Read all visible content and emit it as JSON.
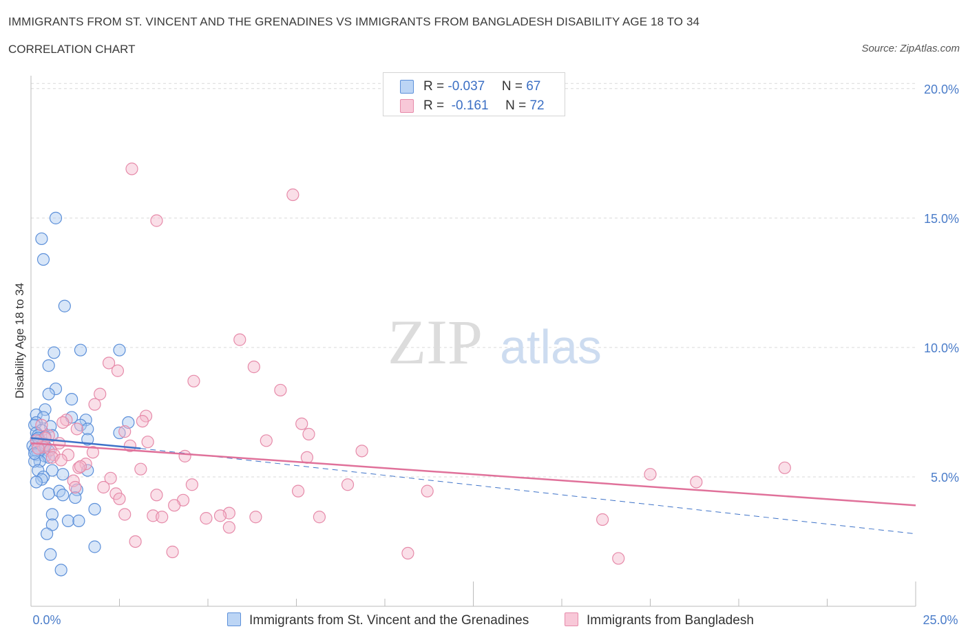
{
  "title": "IMMIGRANTS FROM ST. VINCENT AND THE GRENADINES VS IMMIGRANTS FROM BANGLADESH DISABILITY AGE 18 TO 34",
  "subtitle": "CORRELATION CHART",
  "source": "Source: ZipAtlas.com",
  "watermark": {
    "zip": "ZIP",
    "atlas": "atlas"
  },
  "legend": {
    "rows": [
      {
        "r_label": "R = ",
        "r_value": "-0.037",
        "n_label": "N = ",
        "n_value": "67"
      },
      {
        "r_label": "R = ",
        "r_value": " -0.161",
        "n_label": "N = ",
        "n_value": "72"
      }
    ]
  },
  "colors": {
    "blue_fill": "#a9c8f0",
    "blue_stroke": "#5b8fd9",
    "blue_line": "#3d72c8",
    "pink_fill": "#f5b8cc",
    "pink_stroke": "#e68aa9",
    "pink_line": "#e0719a",
    "grid": "#d9d9d9",
    "axis_text": "#4a7cc9"
  },
  "chart_data": {
    "type": "scatter",
    "title": "IMMIGRANTS FROM ST. VINCENT AND THE GRENADINES VS IMMIGRANTS FROM BANGLADESH DISABILITY AGE 18 TO 34",
    "xlabel": "",
    "ylabel": "Disability Age 18 to 34",
    "xlim": [
      0,
      25
    ],
    "ylim": [
      0,
      20.5
    ],
    "x_tick_labels": [
      {
        "value": 0,
        "label": "0.0%"
      },
      {
        "value": 25,
        "label": "25.0%"
      }
    ],
    "y_tick_labels": [
      {
        "value": 5,
        "label": "5.0%"
      },
      {
        "value": 10,
        "label": "10.0%"
      },
      {
        "value": 15,
        "label": "15.0%"
      },
      {
        "value": 20,
        "label": "20.0%"
      }
    ],
    "series": [
      {
        "name": "Immigrants from St. Vincent and the Grenadines",
        "color": "#a9c8f0",
        "trend": {
          "x0": 0,
          "y0": 6.5,
          "x1": 3.1,
          "y1": 6.1,
          "dashed_x1": 25,
          "dashed_y1": 2.8
        },
        "points": [
          [
            0.7,
            15.0
          ],
          [
            0.3,
            14.2
          ],
          [
            0.35,
            13.4
          ],
          [
            0.95,
            11.6
          ],
          [
            1.4,
            9.9
          ],
          [
            2.5,
            9.9
          ],
          [
            0.65,
            9.8
          ],
          [
            0.5,
            9.3
          ],
          [
            0.7,
            8.4
          ],
          [
            0.5,
            8.2
          ],
          [
            1.15,
            8.0
          ],
          [
            0.4,
            7.6
          ],
          [
            0.15,
            7.4
          ],
          [
            0.35,
            7.3
          ],
          [
            1.15,
            7.3
          ],
          [
            1.55,
            7.2
          ],
          [
            2.75,
            7.1
          ],
          [
            0.15,
            7.1
          ],
          [
            0.1,
            7.0
          ],
          [
            0.55,
            6.95
          ],
          [
            1.4,
            7.0
          ],
          [
            0.3,
            6.8
          ],
          [
            1.6,
            6.85
          ],
          [
            2.5,
            6.7
          ],
          [
            0.15,
            6.7
          ],
          [
            0.2,
            6.6
          ],
          [
            0.6,
            6.6
          ],
          [
            0.4,
            6.55
          ],
          [
            0.15,
            6.45
          ],
          [
            0.25,
            6.4
          ],
          [
            1.6,
            6.45
          ],
          [
            0.15,
            6.3
          ],
          [
            0.35,
            6.3
          ],
          [
            0.05,
            6.2
          ],
          [
            0.3,
            6.1
          ],
          [
            0.1,
            6.05
          ],
          [
            0.5,
            6.0
          ],
          [
            0.2,
            5.95
          ],
          [
            0.15,
            5.85
          ],
          [
            0.4,
            5.8
          ],
          [
            0.5,
            5.75
          ],
          [
            0.25,
            5.6
          ],
          [
            0.1,
            5.6
          ],
          [
            0.2,
            5.25
          ],
          [
            0.6,
            5.25
          ],
          [
            1.6,
            5.25
          ],
          [
            0.9,
            5.1
          ],
          [
            0.35,
            5.0
          ],
          [
            0.3,
            4.9
          ],
          [
            0.15,
            4.8
          ],
          [
            1.3,
            4.5
          ],
          [
            0.8,
            4.45
          ],
          [
            0.5,
            4.35
          ],
          [
            0.9,
            4.3
          ],
          [
            1.25,
            4.2
          ],
          [
            1.8,
            3.75
          ],
          [
            0.6,
            3.55
          ],
          [
            1.05,
            3.3
          ],
          [
            1.35,
            3.3
          ],
          [
            0.6,
            3.15
          ],
          [
            0.45,
            2.8
          ],
          [
            1.8,
            2.3
          ],
          [
            0.55,
            2.0
          ],
          [
            0.85,
            1.4
          ],
          [
            0.2,
            6.5
          ],
          [
            0.4,
            6.2
          ],
          [
            0.1,
            5.9
          ]
        ]
      },
      {
        "name": "Immigrants from Bangladesh",
        "color": "#f5b8cc",
        "trend": {
          "x0": 0,
          "y0": 6.3,
          "x1": 25,
          "y1": 3.9
        },
        "points": [
          [
            2.85,
            16.9
          ],
          [
            7.4,
            15.9
          ],
          [
            3.55,
            14.9
          ],
          [
            5.9,
            10.3
          ],
          [
            2.2,
            9.4
          ],
          [
            6.3,
            9.25
          ],
          [
            2.45,
            9.1
          ],
          [
            4.6,
            8.7
          ],
          [
            7.05,
            8.35
          ],
          [
            1.95,
            8.2
          ],
          [
            1.8,
            7.8
          ],
          [
            3.25,
            7.35
          ],
          [
            1.0,
            7.2
          ],
          [
            0.9,
            7.1
          ],
          [
            3.15,
            7.15
          ],
          [
            7.65,
            7.05
          ],
          [
            1.3,
            6.85
          ],
          [
            2.65,
            6.75
          ],
          [
            7.85,
            6.65
          ],
          [
            0.5,
            6.6
          ],
          [
            6.65,
            6.4
          ],
          [
            0.8,
            6.3
          ],
          [
            3.3,
            6.35
          ],
          [
            0.4,
            6.5
          ],
          [
            2.8,
            6.2
          ],
          [
            0.35,
            6.15
          ],
          [
            0.55,
            6.05
          ],
          [
            1.75,
            5.95
          ],
          [
            9.35,
            6.0
          ],
          [
            1.05,
            5.85
          ],
          [
            0.65,
            5.85
          ],
          [
            0.6,
            5.75
          ],
          [
            4.35,
            5.8
          ],
          [
            7.8,
            5.75
          ],
          [
            0.85,
            5.65
          ],
          [
            1.55,
            5.5
          ],
          [
            1.35,
            5.35
          ],
          [
            3.1,
            5.3
          ],
          [
            21.3,
            5.35
          ],
          [
            17.5,
            5.1
          ],
          [
            18.8,
            4.8
          ],
          [
            2.25,
            4.95
          ],
          [
            1.2,
            4.85
          ],
          [
            4.55,
            4.7
          ],
          [
            8.95,
            4.7
          ],
          [
            2.05,
            4.6
          ],
          [
            2.4,
            4.35
          ],
          [
            7.55,
            4.45
          ],
          [
            11.2,
            4.45
          ],
          [
            3.55,
            4.3
          ],
          [
            4.3,
            4.1
          ],
          [
            2.5,
            4.15
          ],
          [
            4.05,
            3.9
          ],
          [
            2.65,
            3.55
          ],
          [
            5.6,
            3.6
          ],
          [
            5.35,
            3.5
          ],
          [
            8.15,
            3.45
          ],
          [
            3.45,
            3.5
          ],
          [
            6.35,
            3.45
          ],
          [
            4.95,
            3.4
          ],
          [
            3.7,
            3.45
          ],
          [
            16.15,
            3.35
          ],
          [
            5.6,
            3.05
          ],
          [
            2.95,
            2.5
          ],
          [
            4.0,
            2.1
          ],
          [
            10.65,
            2.05
          ],
          [
            16.6,
            1.85
          ],
          [
            1.4,
            5.4
          ],
          [
            0.15,
            6.4
          ],
          [
            0.3,
            7.0
          ],
          [
            1.25,
            4.6
          ],
          [
            0.2,
            6.1
          ]
        ]
      }
    ]
  }
}
